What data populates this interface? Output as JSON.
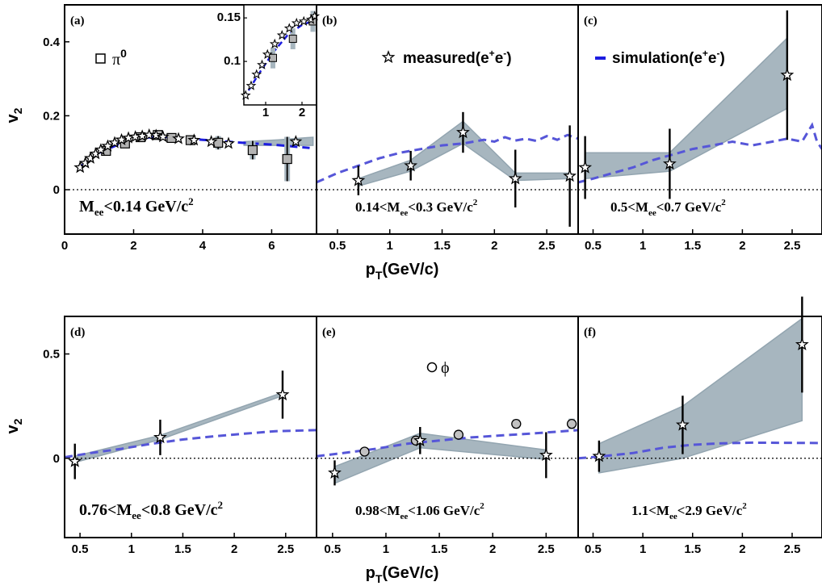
{
  "colors": {
    "band": "#a7b6bf",
    "band_line": "#93a5b0",
    "simulation": "#5656d8",
    "simulation_a": "#1c1ce0",
    "pi0_fill": "#b3b3b3",
    "phi_fill": "#c2c2c2",
    "frame": "#000000"
  },
  "axis_titles": {
    "y_top": "v",
    "y_top_sub": "2",
    "y_bottom": "v",
    "y_bottom_sub": "2",
    "x_top": "p",
    "x_top_sub": "T",
    "x_top_unit": "(GeV/c)",
    "x_bottom": "p",
    "x_bottom_sub": "T",
    "x_bottom_unit": "(GeV/c)"
  },
  "legends": {
    "pi0": {
      "symbol": "square",
      "text": "π",
      "sup": "0"
    },
    "measured": {
      "symbol": "star",
      "text": "measured(e",
      "sup1": "+",
      "mid": "e",
      "sup2": "-",
      "end": ")"
    },
    "simulation": {
      "symbol": "dash",
      "text": "simulation(e",
      "sup1": "+",
      "mid": "e",
      "sup2": "-",
      "end": ")"
    },
    "phi": {
      "symbol": "circle",
      "text": "ϕ"
    }
  },
  "chart_data": [
    {
      "id": "a",
      "panel_label": "(a)",
      "type": "scatter",
      "mass_label": {
        "main": "M",
        "sub": "ee",
        "rest": "<0.14 GeV/c",
        "sup": "2"
      },
      "xlim": [
        0,
        7.3
      ],
      "ylim": [
        -0.12,
        0.5
      ],
      "xticks": [
        0,
        2,
        4,
        6
      ],
      "yticks": [
        0,
        0.2,
        0.4
      ],
      "ytick_labels": [
        "0",
        "0.2",
        "0.4"
      ],
      "series": [
        {
          "symbol": "star",
          "x": [
            0.45,
            0.6,
            0.75,
            0.9,
            1.05,
            1.25,
            1.45,
            1.65,
            1.85,
            2.05,
            2.25,
            2.45,
            2.65,
            2.85,
            3.3,
            3.75,
            4.25,
            4.75,
            6.7
          ],
          "y": [
            0.06,
            0.072,
            0.085,
            0.097,
            0.108,
            0.118,
            0.127,
            0.135,
            0.14,
            0.143,
            0.145,
            0.148,
            0.147,
            0.143,
            0.138,
            0.134,
            0.13,
            0.125,
            0.13
          ]
        },
        {
          "name": "π0",
          "symbol": "square",
          "x": [
            1.2,
            1.75,
            2.2,
            2.7,
            3.1,
            3.65,
            4.45,
            5.45,
            6.45
          ],
          "y": [
            0.105,
            0.125,
            0.142,
            0.148,
            0.14,
            0.134,
            0.127,
            0.107,
            0.083
          ],
          "err": [
            0.01,
            0.01,
            0.01,
            0.01,
            0.01,
            0.012,
            0.018,
            0.025,
            0.06
          ]
        },
        {
          "symbol": "dash",
          "x": [
            0.4,
            1,
            2,
            3,
            4,
            5,
            6,
            7.1
          ],
          "y": [
            0.058,
            0.1,
            0.14,
            0.143,
            0.135,
            0.128,
            0.122,
            0.113
          ]
        }
      ],
      "band": {
        "x": [
          5.2,
          6.2,
          7.2
        ],
        "lower": [
          0.12,
          0.12,
          0.12
        ],
        "upper": [
          0.13,
          0.135,
          0.142
        ]
      },
      "inset": {
        "xlim": [
          0.4,
          2.4
        ],
        "ylim": [
          0.05,
          0.165
        ],
        "xticks": [
          1,
          2
        ],
        "yticks": [
          0.1,
          0.15
        ],
        "ytick_labels": [
          "0.1",
          "0.15"
        ],
        "stars_x": [
          0.45,
          0.6,
          0.75,
          0.9,
          1.05,
          1.25,
          1.45,
          1.65,
          1.85,
          2.05,
          2.25,
          2.35
        ],
        "stars_y": [
          0.061,
          0.072,
          0.085,
          0.096,
          0.108,
          0.12,
          0.13,
          0.138,
          0.144,
          0.146,
          0.148,
          0.152
        ],
        "squares_x": [
          1.2,
          1.75,
          2.3
        ],
        "squares_y": [
          0.104,
          0.126,
          0.146
        ],
        "squares_err": [
          0.012,
          0.012,
          0.012
        ],
        "sim_x": [
          0.4,
          0.8,
          1.2,
          1.6,
          2.0,
          2.4
        ],
        "sim_y": [
          0.058,
          0.085,
          0.11,
          0.13,
          0.142,
          0.148
        ]
      }
    },
    {
      "id": "b",
      "panel_label": "(b)",
      "type": "scatter",
      "mass_label": {
        "main": "0.14<M",
        "sub": "ee",
        "rest": "<0.3 GeV/c",
        "sup": "2"
      },
      "xlim": [
        0.3,
        2.8
      ],
      "ylim": [
        -0.12,
        0.5
      ],
      "xticks": [
        0.5,
        1,
        1.5,
        2,
        2.5
      ],
      "xtick_labels": [
        "0.5",
        "1",
        "1.5",
        "2",
        "2.5"
      ],
      "measured": {
        "x": [
          0.7,
          1.2,
          1.7,
          2.2,
          2.72
        ],
        "y": [
          0.025,
          0.065,
          0.155,
          0.03,
          0.037
        ],
        "err": [
          0.04,
          0.04,
          0.055,
          0.078,
          0.137
        ]
      },
      "band": {
        "x": [
          0.7,
          1.2,
          1.7,
          2.2,
          2.72
        ],
        "lower": [
          0.01,
          0.05,
          0.125,
          0.025,
          0.03
        ],
        "upper": [
          0.03,
          0.08,
          0.185,
          0.045,
          0.045
        ]
      },
      "simulation": {
        "x": [
          0.3,
          0.5,
          0.7,
          0.9,
          1.1,
          1.3,
          1.5,
          1.7,
          1.9,
          2.0,
          2.1,
          2.2,
          2.3,
          2.4,
          2.5,
          2.6,
          2.7,
          2.8
        ],
        "y": [
          0.02,
          0.045,
          0.065,
          0.085,
          0.1,
          0.11,
          0.12,
          0.125,
          0.135,
          0.13,
          0.142,
          0.133,
          0.138,
          0.132,
          0.145,
          0.135,
          0.148,
          0.138
        ]
      }
    },
    {
      "id": "c",
      "panel_label": "(c)",
      "type": "scatter",
      "mass_label": {
        "main": "0.5<M",
        "sub": "ee",
        "rest": "<0.7 GeV/c",
        "sup": "2"
      },
      "xlim": [
        0.35,
        2.8
      ],
      "ylim": [
        -0.12,
        0.5
      ],
      "xticks": [
        0.5,
        1,
        1.5,
        2,
        2.5
      ],
      "xtick_labels": [
        "0.5",
        "1",
        "1.5",
        "2",
        "2.5"
      ],
      "measured": {
        "x": [
          0.42,
          1.27,
          2.45
        ],
        "y": [
          0.06,
          0.07,
          0.31
        ],
        "err": [
          0.085,
          0.095,
          0.175
        ]
      },
      "band": {
        "x": [
          0.42,
          1.27,
          2.45
        ],
        "lower": [
          0.03,
          0.05,
          0.22
        ],
        "upper": [
          0.1,
          0.1,
          0.41
        ]
      },
      "simulation": {
        "x": [
          0.35,
          0.5,
          0.7,
          0.9,
          1.1,
          1.3,
          1.5,
          1.7,
          1.9,
          2.1,
          2.3,
          2.45,
          2.6,
          2.7,
          2.75,
          2.8
        ],
        "y": [
          0.02,
          0.03,
          0.045,
          0.06,
          0.08,
          0.095,
          0.11,
          0.12,
          0.13,
          0.12,
          0.13,
          0.138,
          0.13,
          0.175,
          0.13,
          0.11
        ]
      }
    },
    {
      "id": "d",
      "panel_label": "(d)",
      "type": "scatter",
      "mass_label": {
        "main": "0.76<M",
        "sub": "ee",
        "rest": "<0.8 GeV/c",
        "sup": "2"
      },
      "xlim": [
        0.35,
        2.8
      ],
      "ylim": [
        -0.38,
        0.68
      ],
      "xticks": [
        0.5,
        1,
        1.5,
        2,
        2.5
      ],
      "xtick_labels": [
        "0.5",
        "1",
        "1.5",
        "2",
        "2.5"
      ],
      "yticks": [
        0,
        0.5
      ],
      "ytick_labels": [
        "0",
        "0.5"
      ],
      "measured": {
        "x": [
          0.45,
          1.28,
          2.47
        ],
        "y": [
          -0.015,
          0.1,
          0.305
        ],
        "err": [
          0.085,
          0.085,
          0.115
        ]
      },
      "band": {
        "x": [
          0.45,
          1.28,
          2.47
        ],
        "lower": [
          -0.02,
          0.09,
          0.3
        ],
        "upper": [
          0.01,
          0.11,
          0.315
        ]
      },
      "simulation": {
        "x": [
          0.35,
          0.6,
          0.9,
          1.2,
          1.5,
          1.8,
          2.1,
          2.4,
          2.8
        ],
        "y": [
          0.005,
          0.025,
          0.045,
          0.07,
          0.09,
          0.105,
          0.118,
          0.13,
          0.135
        ]
      }
    },
    {
      "id": "e",
      "panel_label": "(e)",
      "type": "scatter",
      "mass_label": {
        "main": "0.98<M",
        "sub": "ee",
        "rest": "<1.06 GeV/c",
        "sup": "2"
      },
      "xlim": [
        0.35,
        2.8
      ],
      "ylim": [
        -0.38,
        0.68
      ],
      "xticks": [
        0.5,
        1,
        1.5,
        2,
        2.5
      ],
      "xtick_labels": [
        "0.5",
        "1",
        "1.5",
        "2",
        "2.5"
      ],
      "measured": {
        "x": [
          0.52,
          1.32,
          2.5
        ],
        "y": [
          -0.07,
          0.085,
          0.015
        ],
        "err": [
          0.06,
          0.065,
          0.11
        ]
      },
      "band": {
        "x": [
          0.52,
          1.32,
          2.5
        ],
        "lower": [
          -0.12,
          0.05,
          -0.005
        ],
        "upper": [
          -0.04,
          0.12,
          0.04
        ]
      },
      "phi": {
        "x": [
          0.8,
          1.28,
          1.68,
          2.22,
          2.74
        ],
        "y": [
          0.032,
          0.085,
          0.113,
          0.165,
          0.165
        ],
        "err": [
          0.012,
          0.015,
          0.02,
          0.022,
          0.025
        ]
      },
      "simulation": {
        "x": [
          0.35,
          0.6,
          0.9,
          1.2,
          1.5,
          1.8,
          2.1,
          2.4,
          2.8
        ],
        "y": [
          0.01,
          0.025,
          0.045,
          0.07,
          0.085,
          0.1,
          0.11,
          0.12,
          0.135
        ]
      }
    },
    {
      "id": "f",
      "panel_label": "(f)",
      "type": "scatter",
      "mass_label": {
        "main": "1.1<M",
        "sub": "ee",
        "rest": "<2.9 GeV/c",
        "sup": "2"
      },
      "xlim": [
        0.35,
        2.8
      ],
      "ylim": [
        -0.38,
        0.68
      ],
      "xticks": [
        0.5,
        1,
        1.5,
        2,
        2.5
      ],
      "xtick_labels": [
        "0.5",
        "1",
        "1.5",
        "2",
        "2.5"
      ],
      "measured": {
        "x": [
          0.56,
          1.4,
          2.6
        ],
        "y": [
          0.01,
          0.16,
          0.545
        ],
        "err": [
          0.075,
          0.14,
          0.23
        ]
      },
      "band": {
        "x": [
          0.56,
          1.4,
          2.6
        ],
        "lower": [
          -0.07,
          0.0,
          0.18
        ],
        "upper": [
          0.07,
          0.25,
          0.67
        ]
      },
      "simulation": {
        "x": [
          0.35,
          0.6,
          0.9,
          1.2,
          1.5,
          1.8,
          2.1,
          2.4,
          2.8
        ],
        "y": [
          0.0,
          0.01,
          0.025,
          0.05,
          0.065,
          0.072,
          0.075,
          0.074,
          0.073
        ]
      }
    }
  ]
}
